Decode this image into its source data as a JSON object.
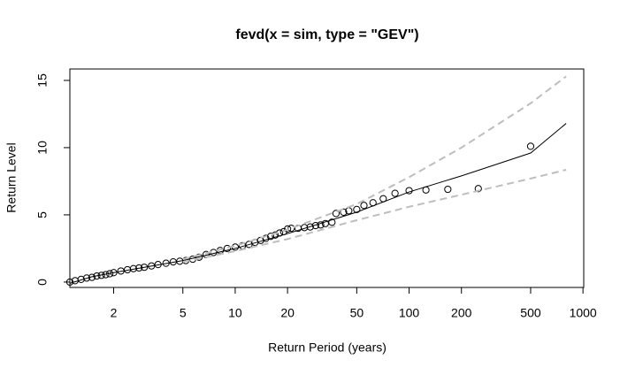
{
  "chart_data": {
    "type": "line",
    "title": "fevd(x = sim, type = \"GEV\")",
    "x_label": "Return Period (years)",
    "y_label": "Return Level",
    "xscale": "log",
    "xlim": [
      1.12,
      1010
    ],
    "ylim": [
      -0.4,
      15.85
    ],
    "xticks": [
      2,
      5,
      10,
      20,
      50,
      100,
      200,
      500,
      1000
    ],
    "yticks": [
      0,
      5,
      10,
      15
    ],
    "series": [
      {
        "style": "points",
        "color": "#000000",
        "x": [
          1.12,
          1.2,
          1.3,
          1.4,
          1.5,
          1.6,
          1.7,
          1.8,
          1.9,
          2,
          2.2,
          2.4,
          2.6,
          2.8,
          3,
          3.3,
          3.6,
          4,
          4.4,
          4.8,
          5.2,
          5.7,
          6.2,
          6.8,
          7.5,
          8.2,
          9,
          10,
          11,
          12,
          13,
          14,
          15,
          16,
          17,
          18,
          19,
          20,
          21,
          23,
          25,
          27,
          29,
          31,
          33,
          36,
          38,
          42,
          45,
          50,
          55,
          62,
          71,
          83,
          100,
          125,
          167,
          250,
          500
        ],
        "values": [
          0,
          0.1,
          0.2,
          0.3,
          0.35,
          0.45,
          0.5,
          0.55,
          0.62,
          0.7,
          0.82,
          0.92,
          1.0,
          1.05,
          1.1,
          1.2,
          1.3,
          1.4,
          1.5,
          1.55,
          1.6,
          1.7,
          1.85,
          2.05,
          2.2,
          2.35,
          2.5,
          2.6,
          2.7,
          2.8,
          2.95,
          3.1,
          3.25,
          3.4,
          3.5,
          3.65,
          3.75,
          3.95,
          4.0,
          4.0,
          4.05,
          4.1,
          4.2,
          4.25,
          4.35,
          4.45,
          5.1,
          5.2,
          5.3,
          5.4,
          5.7,
          5.9,
          6.2,
          6.6,
          6.8,
          6.85,
          6.9,
          6.95,
          10.1
        ]
      },
      {
        "style": "solid",
        "color": "#000000",
        "x": [
          1.05,
          1.5,
          2,
          3,
          5,
          10,
          20,
          50,
          100,
          200,
          500,
          800
        ],
        "values": [
          -0.2,
          0.4,
          0.7,
          1.1,
          1.6,
          2.5,
          3.6,
          5.2,
          6.7,
          7.9,
          9.6,
          11.8
        ]
      },
      {
        "style": "dashed",
        "color": "#bebebe",
        "x": [
          5,
          10,
          20,
          50,
          100,
          200,
          500,
          800
        ],
        "values": [
          1.7,
          2.7,
          3.9,
          5.8,
          7.8,
          10.0,
          13.3,
          15.3
        ]
      },
      {
        "style": "dashed",
        "color": "#bebebe",
        "x": [
          5,
          10,
          20,
          50,
          100,
          200,
          500,
          800
        ],
        "values": [
          1.5,
          2.3,
          3.2,
          4.6,
          5.6,
          6.5,
          7.7,
          8.35
        ]
      }
    ]
  }
}
